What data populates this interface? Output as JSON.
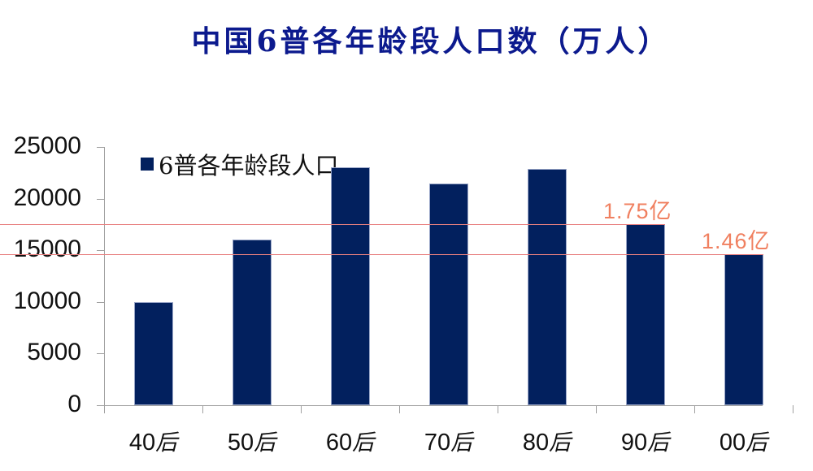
{
  "title": "中国6普各年龄段人口数（万人）",
  "legend": {
    "label": "6普各年龄段人口",
    "color": "#02205e"
  },
  "y_ticks": [
    "25000",
    "20000",
    "15000",
    "10000",
    "5000",
    "0"
  ],
  "x_labels": [
    {
      "num": "40",
      "suffix": "后"
    },
    {
      "num": "50",
      "suffix": "后"
    },
    {
      "num": "60",
      "suffix": "后"
    },
    {
      "num": "70",
      "suffix": "后"
    },
    {
      "num": "80",
      "suffix": "后"
    },
    {
      "num": "90",
      "suffix": "后"
    },
    {
      "num": "00",
      "suffix": "后"
    }
  ],
  "annotations": [
    {
      "text": "1.75亿",
      "category": "90后"
    },
    {
      "text": "1.46亿",
      "category": "00后"
    }
  ],
  "colors": {
    "bar": "#02205e",
    "annotation": "#f08060",
    "refline": "#e88080",
    "title": "#0c1a8e"
  },
  "chart_data": {
    "type": "bar",
    "title": "中国6普各年龄段人口数（万人）",
    "categories": [
      "40后",
      "50后",
      "60后",
      "70后",
      "80后",
      "90后",
      "00后"
    ],
    "series": [
      {
        "name": "6普各年龄段人口",
        "values": [
          10000,
          16000,
          23000,
          21500,
          22900,
          17500,
          14600
        ]
      }
    ],
    "xlabel": "",
    "ylabel": "",
    "ylim": [
      0,
      25000
    ],
    "yticks": [
      0,
      5000,
      10000,
      15000,
      20000,
      25000
    ],
    "grid": false,
    "legend_position": "top-left inside",
    "annotations": [
      {
        "text": "1.75亿",
        "x": "90后",
        "y": 17500,
        "reference_line": true
      },
      {
        "text": "1.46亿",
        "x": "00后",
        "y": 14600,
        "reference_line": true
      }
    ]
  }
}
